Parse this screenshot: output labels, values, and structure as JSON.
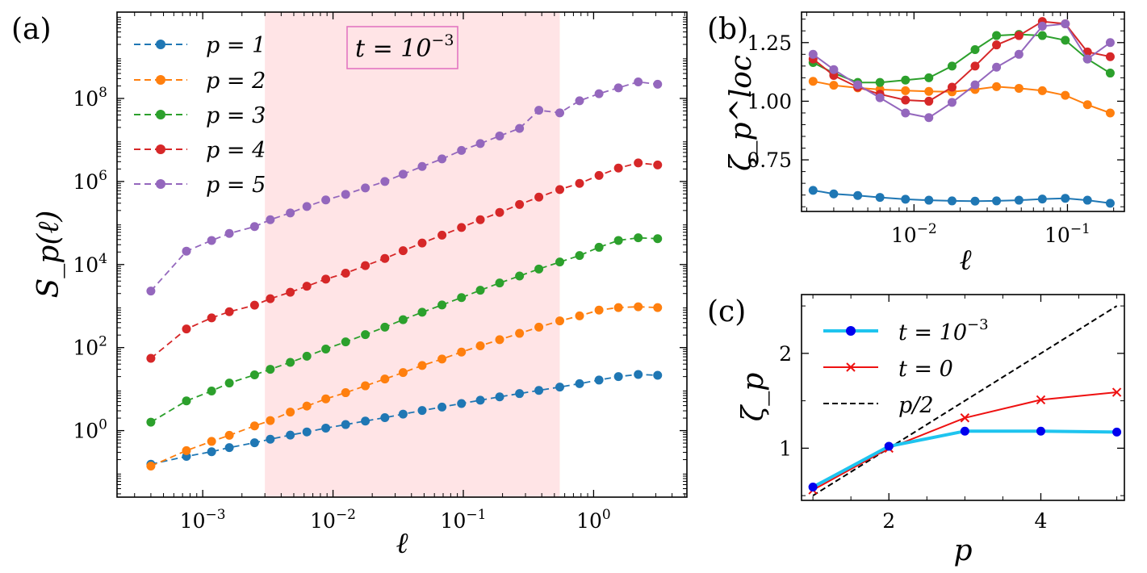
{
  "colors": {
    "p1": "#1f77b4",
    "p2": "#ff7f0e",
    "p3": "#2ca02c",
    "p4": "#d62728",
    "p5": "#9467bd",
    "shade": "#ffe4e6",
    "annotation_box": "#e377c2",
    "c_t1e3_line": "#1ec4ef",
    "c_t1e3_marker": "#0000ee",
    "c_t0": "#ee1111",
    "c_p2": "#000000"
  },
  "chart_data": [
    {
      "id": "a",
      "type": "line",
      "panel_label": "(a)",
      "xlabel": "ℓ",
      "ylabel": "S_p(ℓ)",
      "xscale": "log",
      "yscale": "log",
      "xlim": [
        0.00022,
        5.2
      ],
      "ylim": [
        0.025,
        12000000000
      ],
      "xticks": [
        {
          "value": 0.001,
          "base": "10",
          "exp": "−3"
        },
        {
          "value": 0.01,
          "base": "10",
          "exp": "−2"
        },
        {
          "value": 0.1,
          "base": "10",
          "exp": "−1"
        },
        {
          "value": 1,
          "base": "10",
          "exp": "0"
        }
      ],
      "yticks": [
        {
          "value": 1,
          "base": "10",
          "exp": "0"
        },
        {
          "value": 100,
          "base": "10",
          "exp": "2"
        },
        {
          "value": 10000,
          "base": "10",
          "exp": "4"
        },
        {
          "value": 1000000,
          "base": "10",
          "exp": "6"
        },
        {
          "value": 100000000,
          "base": "10",
          "exp": "8"
        }
      ],
      "shaded_region": [
        0.003,
        0.55
      ],
      "annotation": {
        "text": "t = 10",
        "exp": "−3"
      },
      "legend_position": "upper-left",
      "x": [
        0.0004,
        0.00075,
        0.00117,
        0.0016,
        0.0025,
        0.0033,
        0.0047,
        0.0063,
        0.0088,
        0.0125,
        0.0177,
        0.025,
        0.0345,
        0.0483,
        0.0686,
        0.0968,
        0.135,
        0.19,
        0.27,
        0.38,
        0.55,
        0.78,
        1.1,
        1.55,
        2.2,
        3.1
      ],
      "series": [
        {
          "name": "p = 1",
          "color_key": "p1",
          "values": [
            0.155,
            0.24,
            0.31,
            0.39,
            0.51,
            0.62,
            0.78,
            0.93,
            1.15,
            1.4,
            1.7,
            2.05,
            2.5,
            3.05,
            3.7,
            4.5,
            5.4,
            6.5,
            7.8,
            9.3,
            11.2,
            13.5,
            16.5,
            20,
            22.5,
            21.5
          ]
        },
        {
          "name": "p = 2",
          "color_key": "p2",
          "values": [
            0.14,
            0.33,
            0.55,
            0.77,
            1.3,
            1.75,
            2.8,
            3.9,
            5.8,
            8.2,
            12,
            17.5,
            25,
            37,
            53,
            78,
            110,
            155,
            220,
            310,
            440,
            580,
            800,
            920,
            960,
            920
          ]
        },
        {
          "name": "p = 3",
          "color_key": "p3",
          "values": [
            1.6,
            5.2,
            9,
            14,
            22,
            30,
            44,
            62,
            92,
            137,
            205,
            310,
            470,
            710,
            1060,
            1600,
            2400,
            3600,
            5300,
            7800,
            11500,
            16500,
            26000,
            38000,
            44000,
            42000
          ]
        },
        {
          "name": "p = 4",
          "color_key": "p4",
          "values": [
            55,
            280,
            520,
            730,
            1050,
            1500,
            2150,
            3000,
            4450,
            6200,
            9400,
            14000,
            21500,
            33000,
            51000,
            78000,
            120000,
            180000,
            280000,
            420000,
            640000,
            900000,
            1400000,
            2100000,
            2800000,
            2500000
          ]
        },
        {
          "name": "p = 5",
          "color_key": "p5",
          "values": [
            2300,
            21000,
            38000,
            56000,
            82000,
            120000,
            175000,
            250000,
            360000,
            490000,
            700000,
            1000000,
            1500000,
            2300000,
            3500000,
            5600000,
            8200000,
            12500000,
            19000000,
            52000000,
            45000000,
            88000000,
            130000000,
            180000000,
            250000000,
            220000000
          ]
        }
      ]
    },
    {
      "id": "b",
      "type": "line",
      "panel_label": "(b)",
      "xlabel": "ℓ",
      "ylabel": "ζ_p^loc",
      "xscale": "log",
      "yscale": "linear",
      "xlim": [
        0.00185,
        0.235
      ],
      "ylim": [
        0.53,
        1.38
      ],
      "xticks": [
        {
          "value": 0.01,
          "base": "10",
          "exp": "−2"
        },
        {
          "value": 0.1,
          "base": "10",
          "exp": "−1"
        }
      ],
      "yticks": [
        {
          "value": 0.75,
          "label": "0.75"
        },
        {
          "value": 1.0,
          "label": "1.00"
        },
        {
          "value": 1.25,
          "label": "1.25"
        }
      ],
      "x": [
        0.0022,
        0.003,
        0.0043,
        0.006,
        0.0088,
        0.0125,
        0.0177,
        0.025,
        0.0345,
        0.0483,
        0.0686,
        0.0968,
        0.135,
        0.19
      ],
      "series": [
        {
          "name": "p = 1",
          "color_key": "p1",
          "values": [
            0.62,
            0.605,
            0.598,
            0.59,
            0.582,
            0.578,
            0.575,
            0.574,
            0.575,
            0.578,
            0.583,
            0.586,
            0.578,
            0.565
          ]
        },
        {
          "name": "p = 2",
          "color_key": "p2",
          "values": [
            1.085,
            1.068,
            1.057,
            1.05,
            1.045,
            1.042,
            1.04,
            1.05,
            1.062,
            1.055,
            1.045,
            1.025,
            0.985,
            0.95
          ]
        },
        {
          "name": "p = 3",
          "color_key": "p3",
          "values": [
            1.165,
            1.12,
            1.08,
            1.08,
            1.09,
            1.1,
            1.15,
            1.22,
            1.28,
            1.285,
            1.28,
            1.26,
            1.18,
            1.12
          ]
        },
        {
          "name": "p = 4",
          "color_key": "p4",
          "values": [
            1.18,
            1.11,
            1.06,
            1.03,
            1.005,
            1.0,
            1.06,
            1.15,
            1.24,
            1.28,
            1.34,
            1.33,
            1.21,
            1.19
          ]
        },
        {
          "name": "p = 5",
          "color_key": "p5",
          "values": [
            1.2,
            1.135,
            1.07,
            1.015,
            0.95,
            0.93,
            0.995,
            1.07,
            1.145,
            1.2,
            1.32,
            1.33,
            1.18,
            1.25
          ]
        }
      ]
    },
    {
      "id": "c",
      "type": "line",
      "panel_label": "(c)",
      "xlabel": "p",
      "ylabel": "ζ_p",
      "xscale": "linear",
      "yscale": "linear",
      "xlim": [
        0.85,
        5.1
      ],
      "ylim": [
        0.45,
        2.62
      ],
      "xticks": [
        {
          "value": 2,
          "label": "2"
        },
        {
          "value": 4,
          "label": "4"
        }
      ],
      "yticks": [
        {
          "value": 1,
          "label": "1"
        },
        {
          "value": 2,
          "label": "2"
        }
      ],
      "legend_position": "upper-left",
      "series": [
        {
          "name": "t = 10",
          "name_exp": "−3",
          "color_key": "c_t1e3_line",
          "marker_color_key": "c_t1e3_marker",
          "marker": "circle",
          "x": [
            1,
            2,
            3,
            4,
            5
          ],
          "values": [
            0.59,
            1.02,
            1.18,
            1.18,
            1.17
          ]
        },
        {
          "name": "t = 0",
          "color_key": "c_t0",
          "marker": "x",
          "x": [
            1,
            2,
            3,
            4,
            5
          ],
          "values": [
            0.56,
            1.0,
            1.32,
            1.51,
            1.59
          ]
        },
        {
          "name": "p/2",
          "color_key": "c_p2",
          "marker": "none",
          "dashed": true,
          "x": [
            1,
            5
          ],
          "values": [
            0.5,
            2.5
          ]
        }
      ]
    }
  ]
}
